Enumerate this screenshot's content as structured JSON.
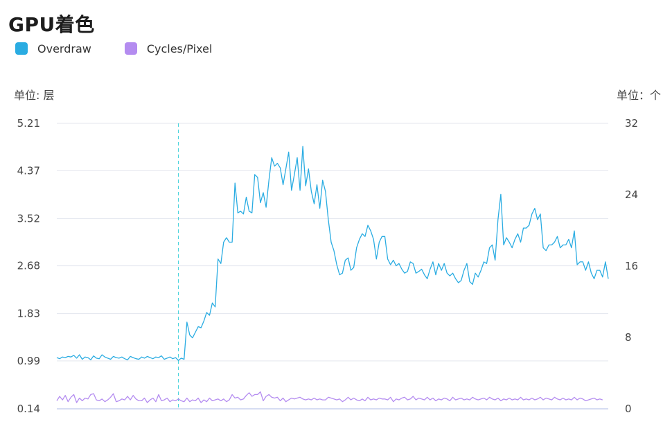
{
  "title": "GPU着色",
  "legend": [
    {
      "label": "Overdraw",
      "color": "#2aace2"
    },
    {
      "label": "Cycles/Pixel",
      "color": "#b48cf0"
    }
  ],
  "units": {
    "left": "单位: 层",
    "right": "单位：个"
  },
  "chart_data": {
    "type": "line",
    "title": "GPU着色",
    "y_left_ticks": [
      "0.14",
      "0.99",
      "1.83",
      "2.68",
      "3.52",
      "4.37",
      "5.21"
    ],
    "y_right_ticks": [
      "0",
      "8",
      "16",
      "24",
      "32"
    ],
    "y_left_range": [
      0.14,
      5.21
    ],
    "y_right_range": [
      0,
      32
    ],
    "grid": true,
    "legend_placement": "top-left",
    "marker_index": 43,
    "marker_color": "#4dd4dd",
    "series": [
      {
        "name": "Overdraw",
        "axis": "left",
        "color": "#2aace2",
        "values": [
          1.05,
          1.03,
          1.06,
          1.05,
          1.07,
          1.06,
          1.09,
          1.04,
          1.1,
          1.02,
          1.06,
          1.05,
          1.01,
          1.08,
          1.04,
          1.03,
          1.1,
          1.06,
          1.04,
          1.02,
          1.07,
          1.05,
          1.04,
          1.06,
          1.03,
          1.01,
          1.07,
          1.05,
          1.03,
          1.02,
          1.06,
          1.04,
          1.07,
          1.05,
          1.03,
          1.06,
          1.05,
          1.08,
          1.02,
          1.04,
          1.06,
          1.03,
          1.05,
          1.0,
          1.04,
          1.02,
          1.68,
          1.45,
          1.4,
          1.5,
          1.6,
          1.58,
          1.7,
          1.85,
          1.8,
          2.02,
          1.95,
          2.8,
          2.72,
          3.1,
          3.18,
          3.1,
          3.1,
          4.15,
          3.62,
          3.65,
          3.6,
          3.9,
          3.65,
          3.62,
          4.3,
          4.25,
          3.8,
          3.98,
          3.72,
          4.2,
          4.6,
          4.45,
          4.5,
          4.42,
          4.12,
          4.4,
          4.7,
          4.02,
          4.3,
          4.6,
          4.02,
          4.8,
          4.1,
          4.4,
          4.0,
          3.78,
          4.12,
          3.7,
          4.2,
          4.0,
          3.5,
          3.1,
          2.95,
          2.7,
          2.52,
          2.55,
          2.78,
          2.82,
          2.6,
          2.65,
          3.0,
          3.15,
          3.25,
          3.2,
          3.4,
          3.3,
          3.15,
          2.8,
          3.1,
          3.2,
          3.2,
          2.8,
          2.7,
          2.78,
          2.68,
          2.72,
          2.62,
          2.55,
          2.58,
          2.75,
          2.72,
          2.55,
          2.58,
          2.62,
          2.52,
          2.45,
          2.62,
          2.75,
          2.52,
          2.72,
          2.6,
          2.72,
          2.55,
          2.5,
          2.55,
          2.45,
          2.38,
          2.42,
          2.6,
          2.72,
          2.4,
          2.35,
          2.55,
          2.48,
          2.6,
          2.75,
          2.72,
          3.0,
          3.05,
          2.78,
          3.5,
          3.95,
          3.05,
          3.18,
          3.1,
          3.0,
          3.15,
          3.25,
          3.1,
          3.35,
          3.35,
          3.4,
          3.6,
          3.7,
          3.5,
          3.6,
          3.0,
          2.95,
          3.05,
          3.05,
          3.1,
          3.2,
          3.0,
          3.05,
          3.05,
          3.15,
          3.0,
          3.3,
          2.7,
          2.75,
          2.75,
          2.6,
          2.75,
          2.55,
          2.45,
          2.6,
          2.6,
          2.48,
          2.75,
          2.45
        ]
      },
      {
        "name": "Cycles/Pixel",
        "axis": "right",
        "color": "#b48cf0",
        "values": [
          0.9,
          1.4,
          1.0,
          1.5,
          0.8,
          1.3,
          1.6,
          0.7,
          1.2,
          0.9,
          1.2,
          1.1,
          1.6,
          1.7,
          1.0,
          0.9,
          1.1,
          0.8,
          1.0,
          1.3,
          1.7,
          0.8,
          0.9,
          1.1,
          1.0,
          1.4,
          1.0,
          1.5,
          1.1,
          0.9,
          0.9,
          1.2,
          0.7,
          1.0,
          1.2,
          0.8,
          1.6,
          0.9,
          1.0,
          1.2,
          0.8,
          1.0,
          0.9,
          1.1,
          0.9,
          0.8,
          1.2,
          0.8,
          1.0,
          0.9,
          1.2,
          0.7,
          1.0,
          0.8,
          1.2,
          0.9,
          1.0,
          1.1,
          0.9,
          1.1,
          0.8,
          1.0,
          1.6,
          1.2,
          1.3,
          1.0,
          1.1,
          1.5,
          1.8,
          1.4,
          1.6,
          1.6,
          1.9,
          0.9,
          1.4,
          1.6,
          1.3,
          1.2,
          1.3,
          0.9,
          1.2,
          0.8,
          1.0,
          1.2,
          1.1,
          1.2,
          1.3,
          1.1,
          1.0,
          1.1,
          1.0,
          1.2,
          1.0,
          1.1,
          1.0,
          1.0,
          1.3,
          1.2,
          1.1,
          1.0,
          1.1,
          0.8,
          1.0,
          1.3,
          1.0,
          1.2,
          1.0,
          0.9,
          1.1,
          0.9,
          1.3,
          1.0,
          1.1,
          1.0,
          1.2,
          1.1,
          1.1,
          1.0,
          1.3,
          0.8,
          1.1,
          1.0,
          1.2,
          1.3,
          1.0,
          1.1,
          1.4,
          1.0,
          1.2,
          1.1,
          1.0,
          1.3,
          1.0,
          1.2,
          0.9,
          1.1,
          1.0,
          1.2,
          1.1,
          0.9,
          1.3,
          1.0,
          1.1,
          1.2,
          1.0,
          1.1,
          1.0,
          1.3,
          1.1,
          1.0,
          1.1,
          1.2,
          1.0,
          1.3,
          1.1,
          1.0,
          1.2,
          0.9,
          1.1,
          1.0,
          1.2,
          1.0,
          1.1,
          1.0,
          1.3,
          1.0,
          1.1,
          1.0,
          1.2,
          1.0,
          1.1,
          1.3,
          1.0,
          1.2,
          1.1,
          1.0,
          1.3,
          1.1,
          1.0,
          1.2,
          1.0,
          1.1,
          1.0,
          1.3,
          1.0,
          1.2,
          1.1,
          0.9,
          1.0,
          1.1,
          1.2,
          1.0,
          1.1,
          1.0
        ]
      }
    ]
  }
}
